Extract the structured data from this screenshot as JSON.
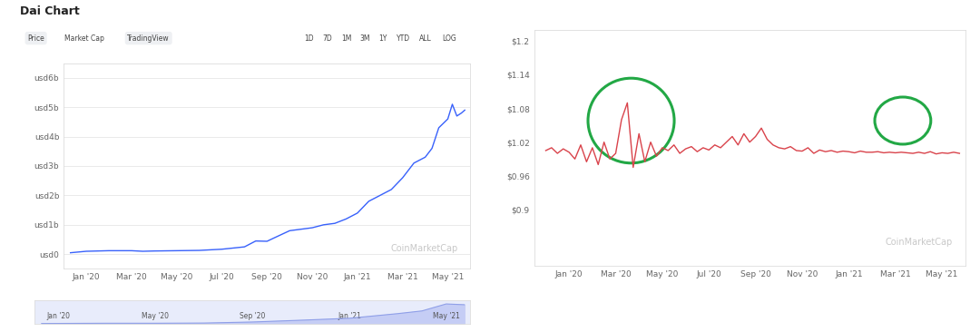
{
  "chart_data": [
    {
      "type": "line",
      "title": "Dai Chart",
      "buttons": [
        "Price",
        "Market Cap",
        "TradingView"
      ],
      "range_buttons": [
        "1D",
        "7D",
        "1M",
        "3M",
        "1Y",
        "YTD",
        "ALL",
        "LOG"
      ],
      "watermark": "CoinMarketCap",
      "x": [
        -0.7,
        0,
        1,
        2,
        2.5,
        3,
        4,
        5,
        6,
        7,
        7.5,
        8,
        8.3,
        9,
        10,
        10.5,
        11,
        11.5,
        12,
        12.5,
        13,
        13.5,
        14,
        14.5,
        15,
        15.3,
        15.6,
        16,
        16.2,
        16.4,
        16.6,
        16.75
      ],
      "values": [
        0.05,
        0.1,
        0.12,
        0.12,
        0.1,
        0.11,
        0.12,
        0.13,
        0.17,
        0.25,
        0.45,
        0.44,
        0.55,
        0.8,
        0.9,
        1.0,
        1.05,
        1.2,
        1.4,
        1.8,
        2.0,
        2.2,
        2.6,
        3.1,
        3.3,
        3.6,
        4.3,
        4.6,
        5.1,
        4.7,
        4.8,
        4.9
      ],
      "color": "#3861fb",
      "xlim": [
        -1.0,
        17.0
      ],
      "xticks": [
        {
          "value": 0,
          "label": "Jan '20"
        },
        {
          "value": 2,
          "label": "Mar '20"
        },
        {
          "value": 4,
          "label": "May '20"
        },
        {
          "value": 6,
          "label": "Jul '20"
        },
        {
          "value": 8,
          "label": "Sep '20"
        },
        {
          "value": 10,
          "label": "Nov '20"
        },
        {
          "value": 12,
          "label": "Jan '21"
        },
        {
          "value": 14,
          "label": "Mar '21"
        },
        {
          "value": 16,
          "label": "May '21"
        }
      ],
      "ylim": [
        -0.5,
        6.5
      ],
      "yticks": [
        {
          "value": 0,
          "label": "usd0"
        },
        {
          "value": 1,
          "label": "usd1b"
        },
        {
          "value": 2,
          "label": "usd2b"
        },
        {
          "value": 3,
          "label": "usd3b"
        },
        {
          "value": 4,
          "label": "usd4b"
        },
        {
          "value": 5,
          "label": "usd5b"
        },
        {
          "value": 6,
          "label": "usd6b"
        }
      ],
      "grid": true
    },
    {
      "type": "area",
      "x": [
        -0.7,
        2,
        4,
        6,
        8,
        10,
        12,
        14,
        15,
        16,
        16.75
      ],
      "values": [
        0.05,
        0.12,
        0.12,
        0.17,
        0.44,
        0.9,
        1.4,
        2.6,
        3.3,
        5.1,
        4.9
      ],
      "color": "#c5cdf5",
      "xlim": [
        -1.0,
        17.0
      ],
      "xticks": [
        {
          "value": 0,
          "label": "Jan '20"
        },
        {
          "value": 4,
          "label": "May '20"
        },
        {
          "value": 8,
          "label": "Sep '20"
        },
        {
          "value": 12,
          "label": "Jan '21"
        },
        {
          "value": 16,
          "label": "May '21"
        }
      ],
      "ylim": [
        0,
        6
      ],
      "yticks": [],
      "tick_labels": "x"
    },
    {
      "type": "line",
      "watermark": "CoinMarketCap",
      "x": [
        -1.0,
        -0.75,
        -0.5,
        -0.25,
        0,
        0.25,
        0.5,
        0.75,
        1,
        1.25,
        1.5,
        1.75,
        2,
        2.25,
        2.5,
        2.75,
        3,
        3.25,
        3.5,
        3.75,
        4,
        4.25,
        4.5,
        4.75,
        5,
        5.25,
        5.5,
        5.75,
        6,
        6.25,
        6.5,
        6.75,
        7,
        7.25,
        7.5,
        7.75,
        8,
        8.25,
        8.5,
        8.75,
        9,
        9.25,
        9.5,
        9.75,
        10,
        10.25,
        10.5,
        10.75,
        11,
        11.25,
        11.5,
        11.75,
        12,
        12.25,
        12.5,
        12.75,
        13,
        13.25,
        13.5,
        13.75,
        14,
        14.25,
        14.5,
        14.75,
        15,
        15.25,
        15.5,
        15.75,
        16,
        16.25,
        16.5,
        16.75
      ],
      "values": [
        1.005,
        1.01,
        1.0,
        1.008,
        1.002,
        0.99,
        1.015,
        0.985,
        1.01,
        0.98,
        1.02,
        0.99,
        1.0,
        1.06,
        1.09,
        0.975,
        1.035,
        0.985,
        1.02,
        0.995,
        1.01,
        1.005,
        1.015,
        1.0,
        1.008,
        1.012,
        1.003,
        1.01,
        1.006,
        1.015,
        1.01,
        1.02,
        1.03,
        1.015,
        1.035,
        1.02,
        1.03,
        1.045,
        1.025,
        1.015,
        1.01,
        1.008,
        1.012,
        1.005,
        1.004,
        1.01,
        1.0,
        1.006,
        1.003,
        1.005,
        1.002,
        1.004,
        1.003,
        1.001,
        1.004,
        1.002,
        1.002,
        1.003,
        1.001,
        1.002,
        1.001,
        1.002,
        1.001,
        1.0,
        1.002,
        1.0,
        1.003,
        0.999,
        1.001,
        1.0,
        1.002,
        1.0
      ],
      "color": "#d9434b",
      "xlim": [
        -1.5,
        17.0
      ],
      "xticks": [
        {
          "value": 0,
          "label": "Jan '20"
        },
        {
          "value": 2,
          "label": "Mar '20"
        },
        {
          "value": 4,
          "label": "May '20"
        },
        {
          "value": 6,
          "label": "Jul '20"
        },
        {
          "value": 8,
          "label": "Sep '20"
        },
        {
          "value": 10,
          "label": "Nov '20"
        },
        {
          "value": 12,
          "label": "Jan '21"
        },
        {
          "value": 14,
          "label": "Mar '21"
        },
        {
          "value": 16,
          "label": "May '21"
        }
      ],
      "ylim": [
        0.8,
        1.22
      ],
      "yticks": [
        {
          "value": 0.9,
          "label": "$0.9"
        },
        {
          "value": 0.96,
          "label": "$0.96"
        },
        {
          "value": 1.02,
          "label": "$1.02"
        },
        {
          "value": 1.08,
          "label": "$1.08"
        },
        {
          "value": 1.14,
          "label": "$1.14"
        },
        {
          "value": 1.2,
          "label": "$1.2"
        }
      ],
      "grid": false
    }
  ]
}
